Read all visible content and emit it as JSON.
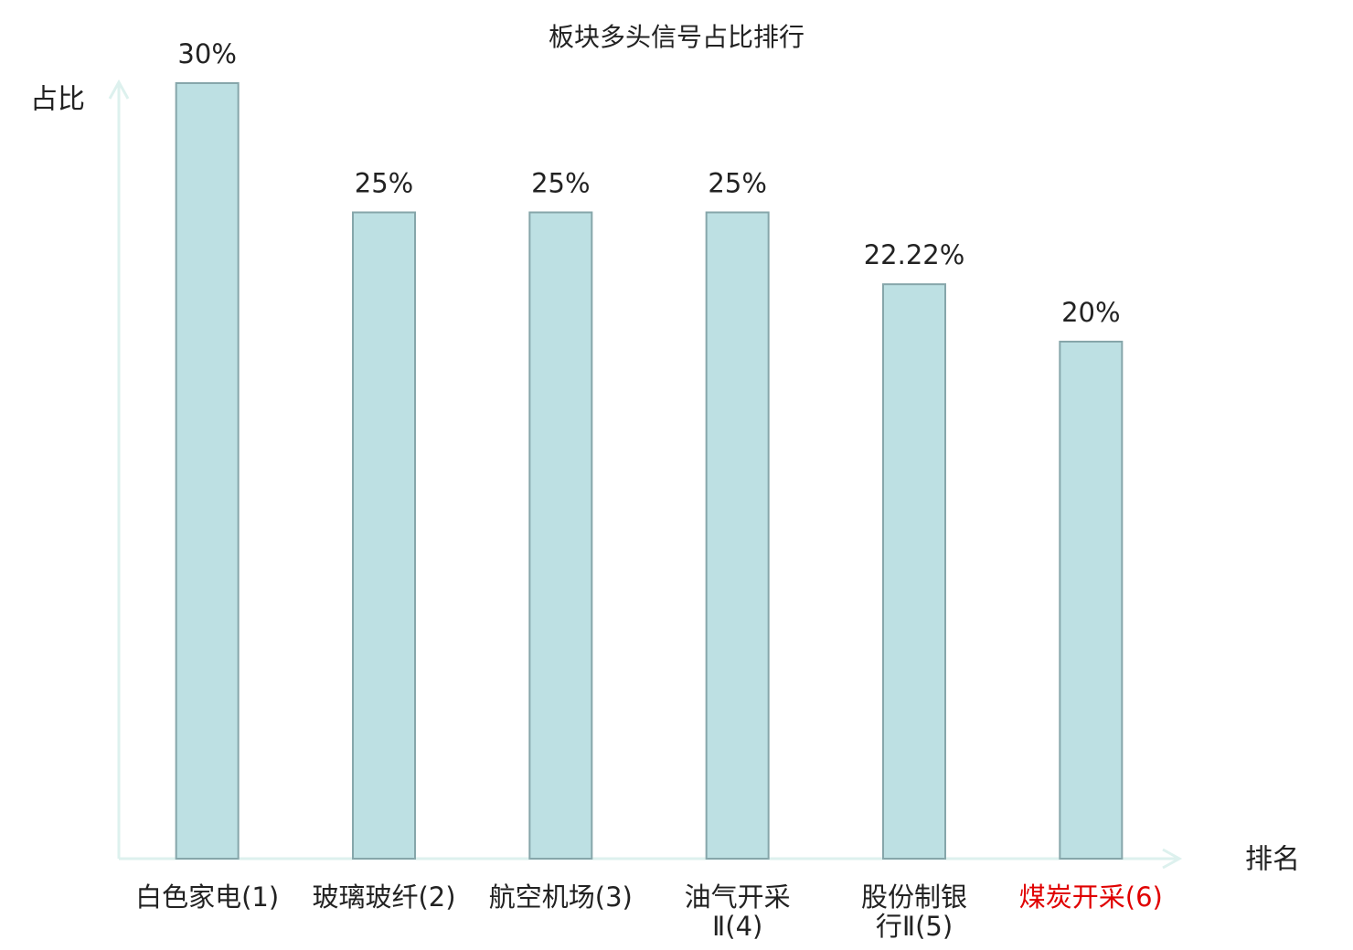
{
  "chart_data": {
    "type": "bar",
    "title": "板块多头信号占比排行",
    "y_label": "占比",
    "x_label": "排名",
    "categories": [
      "白色家电(1)",
      "玻璃玻纤(2)",
      "航空机场(3)",
      "油气开采Ⅱ(4)",
      "股份制银行Ⅱ(5)",
      "煤炭开采(6)"
    ],
    "category_colors": [
      "#222222",
      "#222222",
      "#222222",
      "#222222",
      "#222222",
      "#e00000"
    ],
    "values": [
      30,
      25,
      25,
      25,
      22.22,
      20
    ],
    "value_labels": [
      "30%",
      "25%",
      "25%",
      "25%",
      "22.22%",
      "20%"
    ],
    "color": "#bde0e3",
    "edge_color": "#86a6aa",
    "axis_color": "#ddf1ee",
    "ylim": [
      0,
      30
    ]
  }
}
